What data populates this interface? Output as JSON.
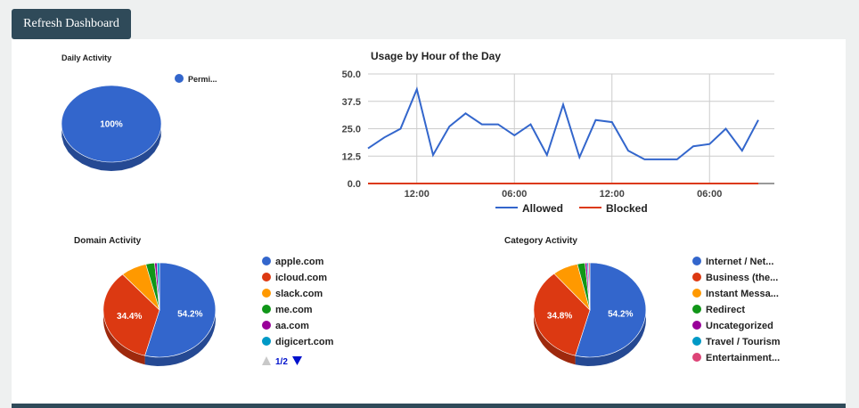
{
  "toolbar": {
    "refresh_label": "Refresh Dashboard"
  },
  "chart_data": [
    {
      "type": "pie",
      "title": "Daily Activity",
      "categories": [
        "Permi..."
      ],
      "values": [
        100
      ],
      "slice_labels": [
        "100%"
      ],
      "colors": [
        "#3366cc"
      ],
      "legend": "right"
    },
    {
      "type": "line",
      "title": "Usage by Hour of the Day",
      "x": [
        "09:00",
        "10:00",
        "11:00",
        "12:00",
        "13:00",
        "14:00",
        "15:00",
        "16:00",
        "17:00",
        "18:00",
        "19:00",
        "20:00",
        "21:00",
        "22:00",
        "23:00",
        "00:00",
        "01:00",
        "02:00",
        "03:00",
        "04:00",
        "05:00",
        "06:00",
        "07:00",
        "08:00",
        "09:00"
      ],
      "x_ticks": [
        "12:00",
        "06:00",
        "12:00",
        "06:00"
      ],
      "y_ticks": [
        "50.0",
        "37.5",
        "25.0",
        "12.5",
        "0.0"
      ],
      "ylim": [
        0,
        50
      ],
      "grid": true,
      "legend": "bottom",
      "series": [
        {
          "name": "Allowed",
          "color": "#3366cc",
          "values": [
            16,
            21,
            25,
            43,
            13,
            26,
            32,
            27,
            27,
            22,
            27,
            13,
            36,
            12,
            29,
            28,
            15,
            11,
            11,
            11,
            17,
            18,
            25,
            15,
            29
          ]
        },
        {
          "name": "Blocked",
          "color": "#dc3912",
          "values": [
            0,
            0,
            0,
            0,
            0,
            0,
            0,
            0,
            0,
            0,
            0,
            0,
            0,
            0,
            0,
            0,
            0,
            0,
            0,
            0,
            0,
            0,
            0,
            0,
            0
          ]
        }
      ]
    },
    {
      "type": "pie",
      "title": "Domain Activity",
      "categories": [
        "apple.com",
        "icloud.com",
        "slack.com",
        "me.com",
        "aa.com",
        "digicert.com"
      ],
      "values": [
        54.2,
        34.4,
        7.5,
        2.5,
        0.7,
        0.7
      ],
      "slice_labels": [
        "54.2%",
        "34.4%",
        "",
        "",
        "",
        ""
      ],
      "colors": [
        "#3366cc",
        "#dc3912",
        "#ff9900",
        "#109618",
        "#990099",
        "#0099c6"
      ],
      "legend": "right",
      "pager": "1/2"
    },
    {
      "type": "pie",
      "title": "Category Activity",
      "categories": [
        "Internet / Net...",
        "Business (the...",
        "Instant Messa...",
        "Redirect",
        "Uncategorized",
        "Travel / Tourism",
        "Entertainment..."
      ],
      "values": [
        54.2,
        34.8,
        7.4,
        2.2,
        0.6,
        0.4,
        0.4
      ],
      "slice_labels": [
        "54.2%",
        "34.8%",
        "",
        "",
        "",
        "",
        ""
      ],
      "colors": [
        "#3366cc",
        "#dc3912",
        "#ff9900",
        "#109618",
        "#990099",
        "#0099c6",
        "#dd4477"
      ],
      "legend": "right"
    }
  ]
}
